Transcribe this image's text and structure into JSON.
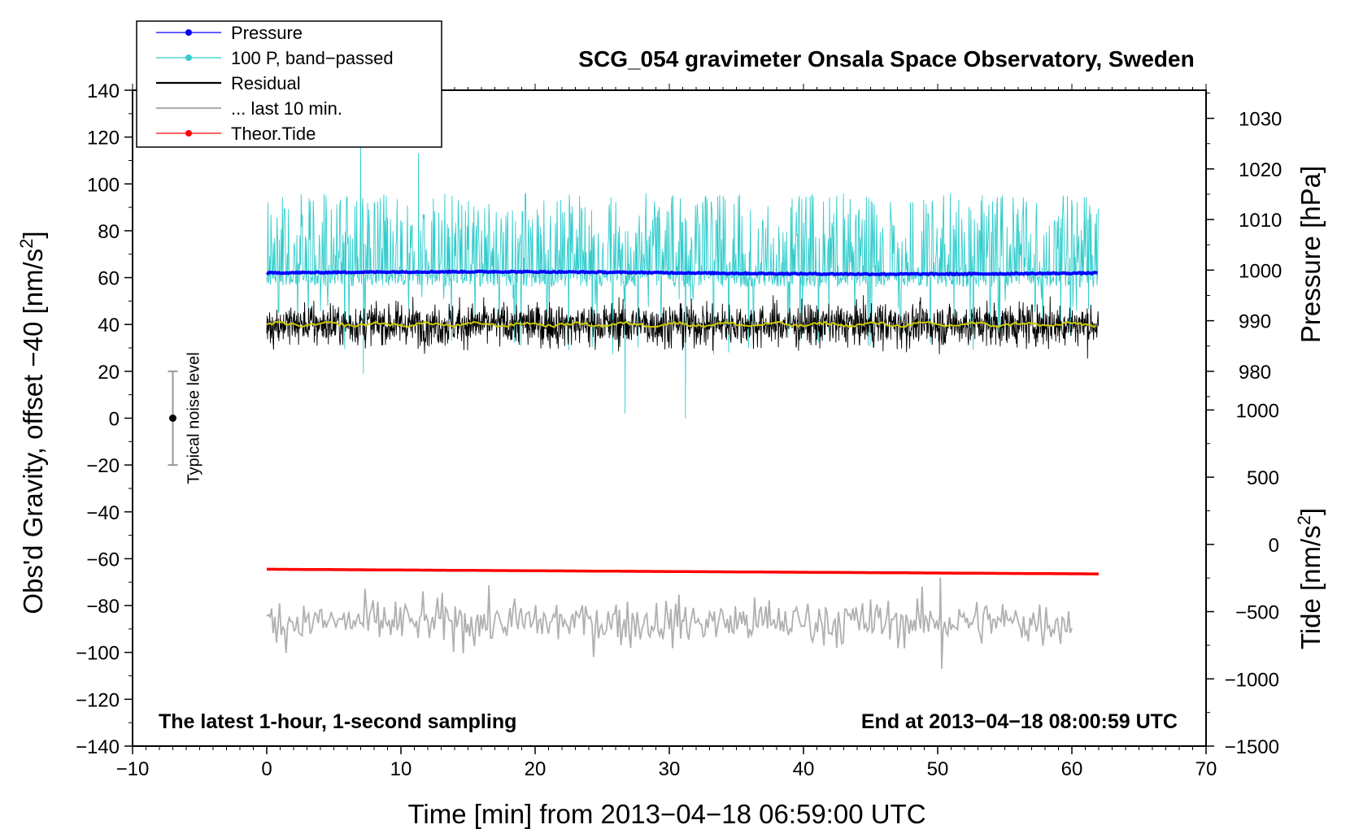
{
  "chart_data": {
    "type": "line",
    "title": "SCG_054 gravimeter Onsala Space Observatory, Sweden",
    "xlabel": "Time [min] from 2013−04−18 06:59:00 UTC",
    "ylabel_left": "Obs'd Gravity, offset −40 [nm/s",
    "ylabel_left_sup": "2",
    "ylabel_left_end": "]",
    "ylabel_right_pressure": "Pressure [hPa]",
    "ylabel_right_tide": "Tide [nm/s",
    "ylabel_right_tide_sup": "2",
    "ylabel_right_tide_end": "]",
    "xlim": [
      -10,
      70
    ],
    "ylim": [
      -140,
      140
    ],
    "x_ticks": [
      -10,
      0,
      10,
      20,
      30,
      40,
      50,
      60,
      70
    ],
    "x_tick_labels": [
      "−10",
      "0",
      "10",
      "20",
      "30",
      "40",
      "50",
      "60",
      "70"
    ],
    "y_ticks": [
      140,
      120,
      100,
      80,
      60,
      40,
      20,
      0,
      -20,
      -40,
      -60,
      -80,
      -100,
      -120,
      -140
    ],
    "y_tick_labels": [
      "140",
      "120",
      "100",
      "80",
      "60",
      "40",
      "20",
      "0",
      "−20",
      "−40",
      "−60",
      "−80",
      "−100",
      "−120",
      "−140"
    ],
    "pressure_axis": {
      "ticks": [
        980,
        990,
        1000,
        1010,
        1020,
        1030
      ],
      "tick_labels": [
        "980",
        "990",
        "1000",
        "1010",
        "1020",
        "1030"
      ],
      "map_to_left": {
        "from": [
          980,
          1030
        ],
        "to": [
          20,
          128
        ]
      }
    },
    "tide_axis": {
      "ticks": [
        1000,
        500,
        0,
        -500,
        -1000,
        -1500
      ],
      "tick_labels": [
        "1000",
        "500",
        "0",
        "−500",
        "−1000",
        "−1500"
      ],
      "map_to_left": {
        "from": [
          -1500,
          1000
        ],
        "to": [
          -140,
          3.5
        ]
      }
    },
    "series": [
      {
        "name": "Pressure",
        "kind": "pressure",
        "color": "#0000ff",
        "x_range": [
          0,
          62
        ],
        "level": 62
      },
      {
        "name": "100 P, band−passed",
        "kind": "bandpass",
        "color": "#33cccc",
        "x_range": [
          0,
          62
        ],
        "center": 62,
        "spikes": [
          {
            "x": 7.0,
            "y": 117
          },
          {
            "x": 11.3,
            "y": 113
          },
          {
            "x": 26.7,
            "y": 2
          },
          {
            "x": 31.2,
            "y": 0
          },
          {
            "x": 7.2,
            "y": 19
          }
        ]
      },
      {
        "name": "Residual",
        "kind": "residual",
        "color": "#000000",
        "x_range": [
          0,
          62
        ],
        "center": 40
      },
      {
        "name": "... last 10 min.",
        "kind": "last10",
        "color": "#b0b0b0",
        "x_range": [
          0,
          60
        ],
        "center": -87,
        "spikes": [
          {
            "x": 50.2,
            "y": -68
          },
          {
            "x": 50.3,
            "y": -107
          }
        ]
      },
      {
        "name": "Theor.Tide",
        "kind": "tide",
        "color": "#ff0000",
        "x_range": [
          0,
          62
        ],
        "y_start": -64.5,
        "y_end": -66.5
      }
    ],
    "running_mean": {
      "color": "#cccc00",
      "center": 40
    },
    "noise_bar": {
      "x": -7,
      "y_low": -20,
      "y_high": 20,
      "center": 0,
      "label": "Typical noise level"
    },
    "annotation_left": "The latest 1-hour, 1-second sampling",
    "annotation_right": "End at 2013−04−18 08:00:59 UTC"
  }
}
